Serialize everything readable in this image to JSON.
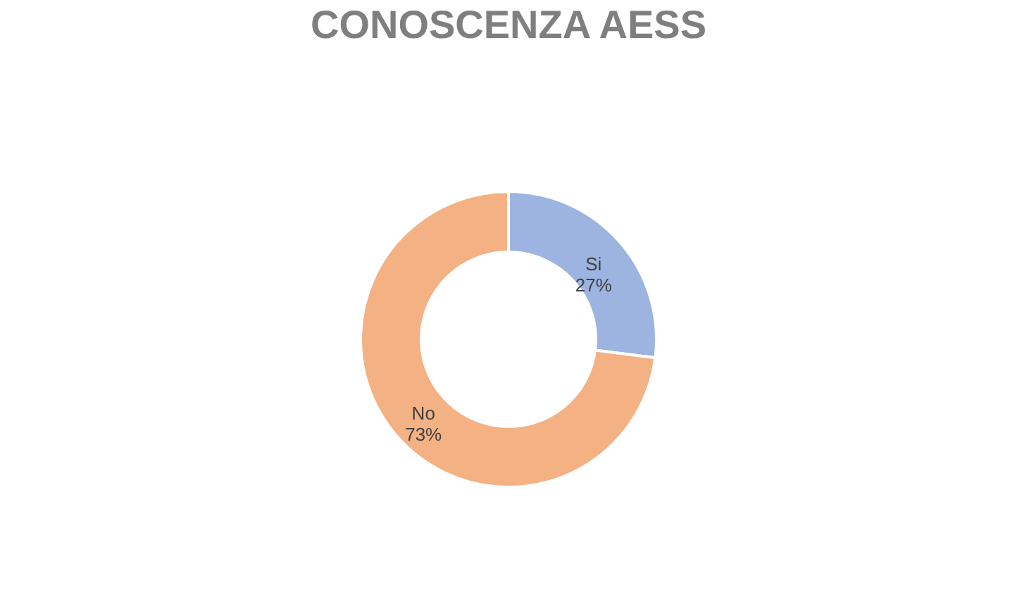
{
  "chart_data": {
    "type": "donut",
    "title": "CONOSCENZA AESS",
    "categories": [
      "Si",
      "No"
    ],
    "values": [
      27,
      73
    ],
    "value_labels": [
      "27%",
      "73%"
    ],
    "colors": [
      "#9db4e0",
      "#f4b183"
    ],
    "data_labels": true,
    "legend": false
  }
}
